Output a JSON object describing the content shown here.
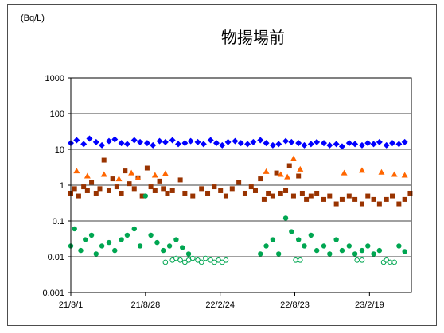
{
  "chart_data": {
    "type": "scatter",
    "title": "物揚場前",
    "ylabel": "(Bq/L)",
    "y_scale": "log",
    "ylim": [
      0.001,
      1000
    ],
    "y_ticks": [
      "1000",
      "100",
      "10",
      "1",
      "0.1",
      "0.01",
      "0.001"
    ],
    "y_tick_values": [
      1000,
      100,
      10,
      1,
      0.1,
      0.01,
      0.001
    ],
    "x_ticks": [
      "21/3/1",
      "21/8/28",
      "22/2/24",
      "22/8/23",
      "23/2/19"
    ],
    "x_tick_dates": [
      "2021-03-01",
      "2021-08-28",
      "2022-02-24",
      "2022-08-23",
      "2023-02-19"
    ],
    "xlim": [
      "2021-03-01",
      "2023-05-31"
    ],
    "grid": "horizontal",
    "legend": "none",
    "series": [
      {
        "marker": "diamond",
        "color": "#0000ff",
        "x": [
          "2021-03-01",
          "2021-03-15",
          "2021-04-01",
          "2021-04-15",
          "2021-05-01",
          "2021-05-15",
          "2021-06-01",
          "2021-06-15",
          "2021-07-01",
          "2021-07-15",
          "2021-08-01",
          "2021-08-15",
          "2021-09-01",
          "2021-09-15",
          "2021-10-01",
          "2021-10-15",
          "2021-11-01",
          "2021-11-15",
          "2021-12-01",
          "2021-12-15",
          "2022-01-01",
          "2022-01-15",
          "2022-02-01",
          "2022-02-15",
          "2022-03-01",
          "2022-03-15",
          "2022-04-01",
          "2022-04-15",
          "2022-05-01",
          "2022-05-15",
          "2022-06-01",
          "2022-06-15",
          "2022-07-01",
          "2022-07-15",
          "2022-08-01",
          "2022-08-15",
          "2022-09-01",
          "2022-09-15",
          "2022-10-01",
          "2022-10-15",
          "2022-11-01",
          "2022-11-15",
          "2022-12-01",
          "2022-12-15",
          "2023-01-01",
          "2023-01-15",
          "2023-02-01",
          "2023-02-15",
          "2023-03-01",
          "2023-03-15",
          "2023-04-01",
          "2023-04-15",
          "2023-05-01",
          "2023-05-15"
        ],
        "y": [
          15,
          18,
          14,
          20,
          16,
          13,
          17,
          19,
          15,
          14,
          18,
          16,
          15,
          13,
          17,
          16,
          18,
          14,
          15,
          17,
          16,
          14,
          18,
          15,
          13,
          16,
          17,
          15,
          14,
          16,
          18,
          15,
          13,
          14,
          17,
          16,
          15,
          13,
          14,
          16,
          15,
          13,
          14,
          12,
          15,
          14,
          13,
          15,
          14,
          16,
          13,
          15,
          14,
          16
        ]
      },
      {
        "marker": "square",
        "color": "#993300",
        "x": [
          "2021-03-01",
          "2021-03-10",
          "2021-03-20",
          "2021-04-01",
          "2021-04-10",
          "2021-04-20",
          "2021-05-01",
          "2021-05-10",
          "2021-05-20",
          "2021-06-01",
          "2021-06-10",
          "2021-06-20",
          "2021-07-01",
          "2021-07-10",
          "2021-07-20",
          "2021-08-01",
          "2021-08-10",
          "2021-08-20",
          "2021-09-01",
          "2021-09-10",
          "2021-09-20",
          "2021-10-01",
          "2021-10-10",
          "2021-10-20",
          "2021-11-01",
          "2021-11-20",
          "2021-12-01",
          "2021-12-20",
          "2022-01-10",
          "2022-01-25",
          "2022-02-10",
          "2022-02-25",
          "2022-03-10",
          "2022-03-25",
          "2022-04-10",
          "2022-04-25",
          "2022-05-10",
          "2022-05-20",
          "2022-06-01",
          "2022-06-10",
          "2022-06-20",
          "2022-07-01",
          "2022-07-10",
          "2022-07-20",
          "2022-08-01",
          "2022-08-10",
          "2022-08-20",
          "2022-09-01",
          "2022-09-10",
          "2022-09-20",
          "2022-10-01",
          "2022-10-15",
          "2022-11-01",
          "2022-11-15",
          "2022-12-01",
          "2022-12-15",
          "2023-01-01",
          "2023-01-15",
          "2023-02-01",
          "2023-02-15",
          "2023-03-01",
          "2023-03-15",
          "2023-04-01",
          "2023-04-15",
          "2023-05-01",
          "2023-05-15",
          "2023-05-28"
        ],
        "y": [
          0.6,
          0.8,
          0.5,
          0.9,
          0.7,
          1.2,
          0.6,
          0.8,
          5,
          0.7,
          1.5,
          0.9,
          0.6,
          2.5,
          1.1,
          0.8,
          1.6,
          0.5,
          3,
          0.9,
          0.7,
          1.3,
          0.8,
          0.6,
          0.7,
          1.4,
          0.6,
          0.5,
          0.8,
          0.6,
          0.9,
          0.7,
          0.5,
          0.8,
          1.2,
          0.6,
          0.9,
          0.7,
          1.5,
          0.4,
          0.6,
          0.5,
          2.2,
          0.6,
          0.7,
          3.5,
          0.5,
          1.8,
          0.6,
          0.4,
          0.5,
          0.6,
          0.4,
          0.5,
          0.3,
          0.4,
          0.5,
          0.4,
          0.3,
          0.5,
          0.4,
          0.3,
          0.4,
          0.5,
          0.3,
          0.4,
          0.6
        ]
      },
      {
        "marker": "triangle",
        "color": "#ff6600",
        "x": [
          "2021-03-15",
          "2021-04-10",
          "2021-05-20",
          "2021-06-25",
          "2021-07-25",
          "2021-08-10",
          "2021-09-20",
          "2021-10-15",
          "2022-06-15",
          "2022-07-20",
          "2022-08-05",
          "2022-08-20",
          "2022-09-05",
          "2022-12-20",
          "2023-02-01",
          "2023-03-20",
          "2023-04-20",
          "2023-05-15"
        ],
        "y": [
          2.5,
          1.8,
          2.0,
          1.5,
          2.2,
          1.6,
          1.9,
          2.1,
          2.4,
          2.0,
          1.7,
          5.5,
          2.8,
          2.2,
          2.6,
          2.3,
          2.0,
          1.9
        ]
      },
      {
        "marker": "circle-filled",
        "color": "#00a651",
        "x": [
          "2021-03-01",
          "2021-03-10",
          "2021-03-25",
          "2021-04-05",
          "2021-04-20",
          "2021-05-01",
          "2021-05-15",
          "2021-06-01",
          "2021-06-15",
          "2021-07-01",
          "2021-07-15",
          "2021-08-01",
          "2021-08-15",
          "2021-08-28",
          "2021-09-10",
          "2021-09-25",
          "2021-10-10",
          "2021-10-25",
          "2021-11-10",
          "2021-11-25",
          "2021-12-10",
          "2022-06-01",
          "2022-06-15",
          "2022-07-01",
          "2022-07-15",
          "2022-08-01",
          "2022-08-15",
          "2022-09-01",
          "2022-09-15",
          "2022-10-01",
          "2022-10-15",
          "2022-11-01",
          "2022-11-15",
          "2022-12-01",
          "2022-12-15",
          "2023-01-01",
          "2023-01-15",
          "2023-02-01",
          "2023-02-15",
          "2023-03-01",
          "2023-03-15",
          "2023-05-01",
          "2023-05-15"
        ],
        "y": [
          0.02,
          0.06,
          0.015,
          0.03,
          0.04,
          0.012,
          0.02,
          0.025,
          0.015,
          0.03,
          0.04,
          0.06,
          0.02,
          0.5,
          0.04,
          0.025,
          0.015,
          0.02,
          0.03,
          0.018,
          0.012,
          0.012,
          0.02,
          0.03,
          0.012,
          0.12,
          0.05,
          0.03,
          0.02,
          0.04,
          0.015,
          0.02,
          0.012,
          0.03,
          0.015,
          0.02,
          0.012,
          0.015,
          0.02,
          0.012,
          0.015,
          0.02,
          0.014
        ]
      },
      {
        "marker": "circle-open",
        "color": "#00a651",
        "x": [
          "2021-10-15",
          "2021-11-01",
          "2021-11-10",
          "2021-11-20",
          "2021-12-01",
          "2021-12-10",
          "2021-12-20",
          "2022-01-01",
          "2022-01-10",
          "2022-01-20",
          "2022-02-01",
          "2022-02-10",
          "2022-02-20",
          "2022-03-01",
          "2022-03-10",
          "2022-08-25",
          "2022-09-05",
          "2023-01-20",
          "2023-02-01",
          "2023-03-25",
          "2023-04-01",
          "2023-04-10",
          "2023-04-20"
        ],
        "y": [
          0.007,
          0.008,
          0.009,
          0.008,
          0.007,
          0.008,
          0.009,
          0.008,
          0.007,
          0.009,
          0.008,
          0.007,
          0.008,
          0.007,
          0.008,
          0.008,
          0.008,
          0.008,
          0.008,
          0.007,
          0.008,
          0.007,
          0.007
        ]
      }
    ]
  }
}
